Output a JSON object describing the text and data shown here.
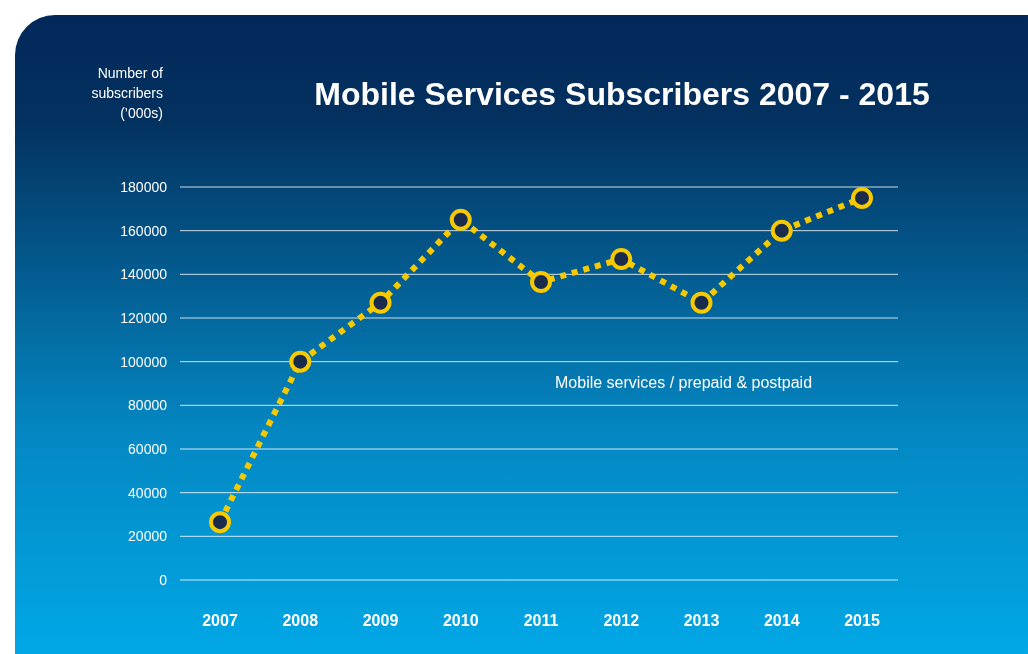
{
  "chart_data": {
    "type": "line",
    "title": "Mobile Services Subscribers  2007 - 2015",
    "ylabel": "Number of subscribers (’000s)",
    "categories": [
      "2007",
      "2008",
      "2009",
      "2010",
      "2011",
      "2012",
      "2013",
      "2014",
      "2015"
    ],
    "series": [
      {
        "name": "Mobile services / prepaid & postpaid",
        "color": "#f7c900",
        "values": [
          26500,
          100000,
          127000,
          165000,
          136500,
          147000,
          127000,
          160000,
          175000
        ]
      }
    ],
    "ylim": [
      0,
      180000
    ],
    "yticks": [
      0,
      20000,
      40000,
      60000,
      80000,
      100000,
      120000,
      140000,
      160000,
      180000
    ],
    "grid": "y",
    "marker": "circle",
    "line_style": "dotted"
  }
}
